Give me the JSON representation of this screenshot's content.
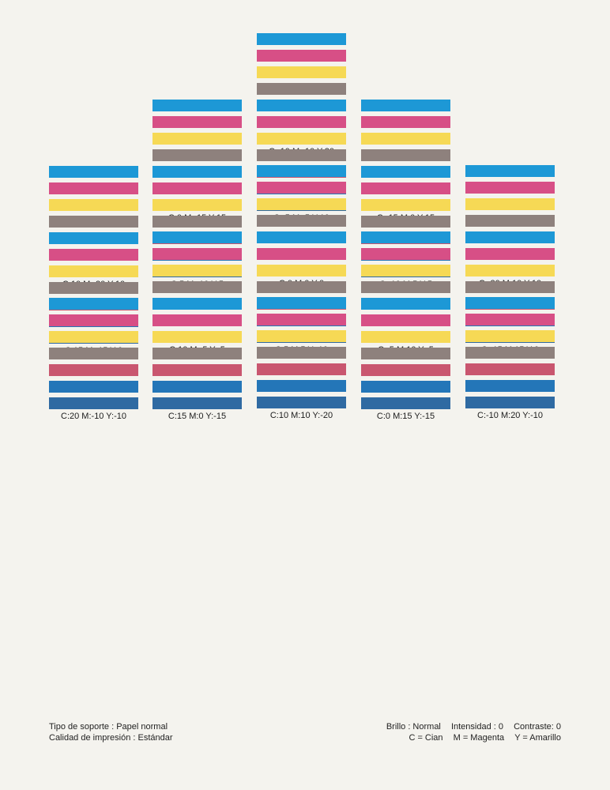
{
  "stripe_colors": [
    "#1d98d6",
    "#d74f86",
    "#f6d955",
    "#8e817d",
    "#c9566f",
    "#2476b8",
    "#2f6aa2"
  ],
  "columns": [
    {
      "patches": [
        "C:10 M:-20 Y:10",
        "C:15 M:-15 Y:0",
        "C:20 M:-10 Y:-10"
      ]
    },
    {
      "patches": [
        "C:0 M:-15 Y:15",
        "C:5 M:-10 Y:5",
        "C:10 M:-5 Y:-5",
        "C:15 M:0 Y:-15"
      ]
    },
    {
      "patches": [
        "C:-10 M:-10 Y:20",
        "C:-5 M:-5 Y:10",
        "C:0 M:0 Y:0",
        "C:5 M:5 Y:-10",
        "C:10 M:10 Y:-20"
      ]
    },
    {
      "patches": [
        "C:-15 M:0 Y:15",
        "C:-10 M:5 Y:5",
        "C:-5 M:10 Y:-5",
        "C:0 M:15 Y:-15"
      ]
    },
    {
      "patches": [
        "C:-20 M:10 Y:10",
        "C:-15 M:15 Y:0",
        "C:-10 M:20 Y:-10"
      ]
    }
  ],
  "footer": {
    "media_type": "Tipo de soporte : Papel normal",
    "print_quality": "Calidad de impresión : Estándar",
    "brightness": "Brillo : Normal",
    "intensity": "Intensidad : 0",
    "contrast": "Contraste: 0",
    "legend_c": "C = Cian",
    "legend_m": "M = Magenta",
    "legend_y": "Y = Amarillo"
  }
}
